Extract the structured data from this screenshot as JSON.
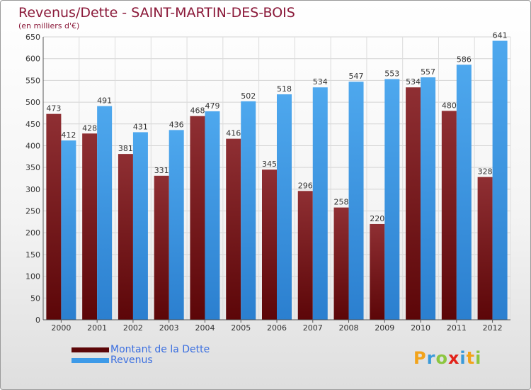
{
  "chart_data": {
    "type": "bar",
    "title": "Revenus/Dette - SAINT-MARTIN-DES-BOIS",
    "subtitle": "(en milliers d'€)",
    "categories": [
      "2000",
      "2001",
      "2002",
      "2003",
      "2004",
      "2005",
      "2006",
      "2007",
      "2008",
      "2009",
      "2010",
      "2011",
      "2012"
    ],
    "series": [
      {
        "name": "Montant de la Dette",
        "color": "#7a1518",
        "values": [
          473,
          428,
          381,
          331,
          468,
          416,
          345,
          296,
          258,
          220,
          534,
          480,
          328
        ]
      },
      {
        "name": "Revenus",
        "color": "#3d9ae8",
        "values": [
          412,
          491,
          431,
          436,
          479,
          502,
          518,
          534,
          547,
          553,
          557,
          586,
          641
        ]
      }
    ],
    "ylim": [
      0,
      650
    ],
    "yticks": [
      0,
      50,
      100,
      150,
      200,
      250,
      300,
      350,
      400,
      450,
      500,
      550,
      600,
      650
    ],
    "grid": true,
    "legend_position": "bottom-left"
  },
  "logo_text": "Proxiti"
}
